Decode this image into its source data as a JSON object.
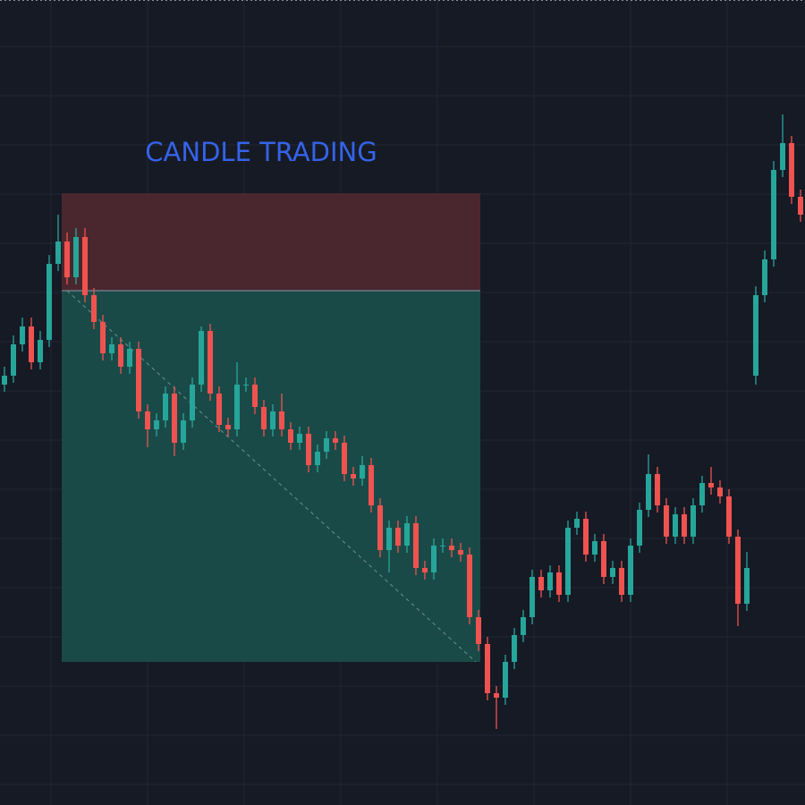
{
  "chart_data": {
    "type": "candlestick",
    "title": "CANDLE TRADING",
    "up_color": "#26a69a",
    "down_color": "#ef5350",
    "open": [
      470,
      480,
      515,
      535,
      495,
      520,
      605,
      630,
      590,
      635,
      570,
      540,
      505,
      515,
      490,
      510,
      440,
      420,
      430,
      460,
      405,
      430,
      470,
      530,
      460,
      425,
      420,
      470,
      470,
      445,
      420,
      440,
      420,
      405,
      415,
      380,
      395,
      410,
      405,
      370,
      365,
      380,
      335,
      285,
      310,
      290,
      315,
      265,
      260,
      290,
      290,
      285,
      280,
      210,
      180,
      125,
      120,
      160,
      190,
      210,
      255,
      240,
      260,
      235,
      310,
      320,
      280,
      295,
      255,
      265,
      235,
      290,
      330,
      370,
      335,
      300,
      325,
      300,
      335,
      360,
      355,
      345,
      300,
      225,
      480,
      570,
      610,
      710,
      740,
      680
    ],
    "high": [
      490,
      525,
      545,
      545,
      530,
      615,
      660,
      640,
      645,
      645,
      578,
      548,
      523,
      523,
      518,
      518,
      448,
      438,
      468,
      468,
      438,
      478,
      535,
      538,
      468,
      433,
      495,
      478,
      478,
      453,
      448,
      460,
      428,
      423,
      423,
      403,
      418,
      418,
      413,
      378,
      390,
      388,
      343,
      318,
      318,
      323,
      323,
      273,
      298,
      298,
      298,
      293,
      288,
      218,
      188,
      133,
      168,
      198,
      218,
      263,
      263,
      268,
      268,
      318,
      328,
      328,
      303,
      303,
      273,
      273,
      298,
      338,
      392,
      378,
      343,
      333,
      333,
      343,
      368,
      378,
      363,
      353,
      308,
      283,
      580,
      620,
      720,
      772,
      748,
      688
    ],
    "low": [
      462,
      472,
      507,
      487,
      487,
      512,
      597,
      582,
      582,
      562,
      532,
      497,
      497,
      482,
      482,
      432,
      400,
      412,
      422,
      390,
      397,
      422,
      462,
      452,
      417,
      412,
      412,
      462,
      437,
      412,
      412,
      412,
      397,
      397,
      372,
      372,
      387,
      397,
      362,
      357,
      357,
      327,
      277,
      260,
      282,
      282,
      257,
      252,
      252,
      282,
      277,
      272,
      202,
      172,
      117,
      85,
      112,
      152,
      182,
      202,
      232,
      232,
      227,
      227,
      302,
      272,
      272,
      247,
      247,
      227,
      227,
      282,
      322,
      327,
      292,
      292,
      292,
      292,
      327,
      347,
      337,
      292,
      200,
      217,
      470,
      562,
      602,
      702,
      672,
      652
    ],
    "close": [
      480,
      515,
      535,
      495,
      520,
      605,
      630,
      590,
      635,
      570,
      540,
      505,
      515,
      490,
      510,
      440,
      420,
      430,
      460,
      405,
      430,
      470,
      530,
      460,
      425,
      420,
      470,
      470,
      445,
      420,
      440,
      420,
      405,
      415,
      380,
      395,
      410,
      405,
      370,
      365,
      380,
      335,
      285,
      310,
      290,
      315,
      265,
      260,
      290,
      290,
      285,
      280,
      210,
      180,
      125,
      120,
      160,
      190,
      210,
      255,
      240,
      260,
      235,
      310,
      320,
      280,
      295,
      255,
      265,
      235,
      290,
      330,
      370,
      335,
      300,
      325,
      300,
      335,
      360,
      355,
      345,
      300,
      225,
      265,
      570,
      610,
      710,
      740,
      680,
      660
    ],
    "position": {
      "stop": 684,
      "entry": 575,
      "target": 160,
      "stop_color": "#4a272e",
      "target_color": "#1a4a47"
    }
  }
}
